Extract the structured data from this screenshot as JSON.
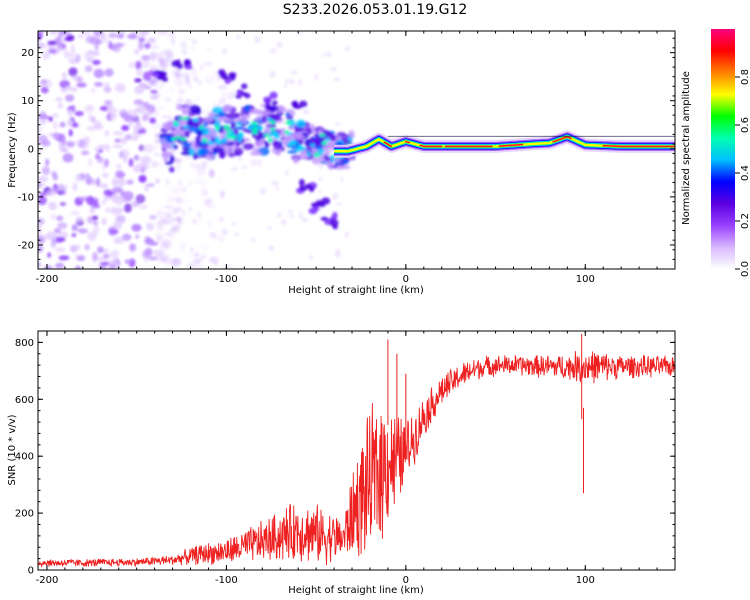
{
  "title": "S233.2026.053.01.19.G12",
  "chart_data": [
    {
      "type": "heatmap",
      "xlabel": "Height of straight line (km)",
      "ylabel": "Frequency (Hz)",
      "xlim": [
        -205,
        150
      ],
      "ylim": [
        -25,
        24.5
      ],
      "xticks": [
        -200,
        -100,
        0,
        100
      ],
      "yticks": [
        -20,
        -10,
        0,
        10,
        20
      ],
      "colorbar": {
        "label": "Normalized spectral amplitude",
        "range": [
          0,
          1
        ],
        "ticks": [
          "0.0",
          "0.2",
          "0.4",
          "0.6",
          "0.8"
        ],
        "tick_values": [
          0,
          0.2,
          0.4,
          0.6,
          0.8
        ],
        "colors": [
          "#ffffff",
          "#d8b8ff",
          "#9a40ff",
          "#5a00e0",
          "#0000ff",
          "#00c0ff",
          "#00ffb0",
          "#00ff00",
          "#ffff00",
          "#ff8000",
          "#ff0000",
          "#ff0080"
        ]
      },
      "ridge": {
        "description": "dominant frequency line vs height",
        "points": [
          [
            -130,
            4.5
          ],
          [
            -110,
            3
          ],
          [
            -90,
            4
          ],
          [
            -70,
            4
          ],
          [
            -55,
            1.5
          ],
          [
            -40,
            -0.5
          ],
          [
            -32,
            -0.5
          ],
          [
            -22,
            0.5
          ],
          [
            -15,
            2
          ],
          [
            -8,
            0.5
          ],
          [
            0,
            1.5
          ],
          [
            10,
            0.5
          ],
          [
            30,
            0.5
          ],
          [
            50,
            0.5
          ],
          [
            70,
            1.0
          ],
          [
            80,
            1.2
          ],
          [
            90,
            2.5
          ],
          [
            100,
            0.8
          ],
          [
            120,
            0.5
          ],
          [
            150,
            0.5
          ]
        ]
      },
      "features": [
        {
          "name": "noise-cloud",
          "x_range": [
            -205,
            -135
          ],
          "y_range": [
            -25,
            24.5
          ]
        },
        {
          "name": "upper-branch",
          "points": [
            [
              -100,
              15
            ],
            [
              -90,
              12
            ],
            [
              -75,
              10
            ],
            [
              -60,
              9
            ]
          ]
        },
        {
          "name": "lower-branch",
          "points": [
            [
              -55,
              -8
            ],
            [
              -48,
              -12
            ],
            [
              -42,
              -15
            ]
          ]
        },
        {
          "name": "isolated-blob",
          "points": [
            [
              -137,
              15.5
            ],
            [
              -125,
              18
            ]
          ]
        }
      ]
    },
    {
      "type": "line",
      "xlabel": "Height of straight line (km)",
      "ylabel": "SNR (10 * v/v)",
      "xlim": [
        -205,
        150
      ],
      "ylim": [
        0,
        840
      ],
      "xticks": [
        -200,
        -100,
        0,
        100
      ],
      "yticks": [
        0,
        200,
        400,
        600,
        800
      ],
      "series_color": "#ee2020",
      "envelope": {
        "x": [
          -205,
          -180,
          -150,
          -130,
          -115,
          -100,
          -80,
          -60,
          -45,
          -35,
          -28,
          -20,
          -15,
          -10,
          -5,
          0,
          5,
          10,
          20,
          30,
          40,
          50,
          60,
          80,
          90,
          100,
          120,
          150
        ],
        "mean": [
          25,
          25,
          28,
          35,
          55,
          65,
          100,
          140,
          120,
          110,
          220,
          300,
          350,
          390,
          380,
          420,
          470,
          540,
          630,
          680,
          710,
          720,
          720,
          715,
          715,
          715,
          715,
          715
        ],
        "spread": [
          15,
          15,
          15,
          20,
          40,
          50,
          80,
          120,
          110,
          80,
          200,
          280,
          300,
          250,
          200,
          120,
          100,
          80,
          60,
          50,
          45,
          40,
          40,
          45,
          50,
          70,
          45,
          40
        ]
      },
      "spikes": [
        [
          -10,
          810
        ],
        [
          -5,
          760
        ],
        [
          0,
          690
        ],
        [
          98,
          830
        ],
        [
          99,
          570
        ]
      ]
    }
  ]
}
